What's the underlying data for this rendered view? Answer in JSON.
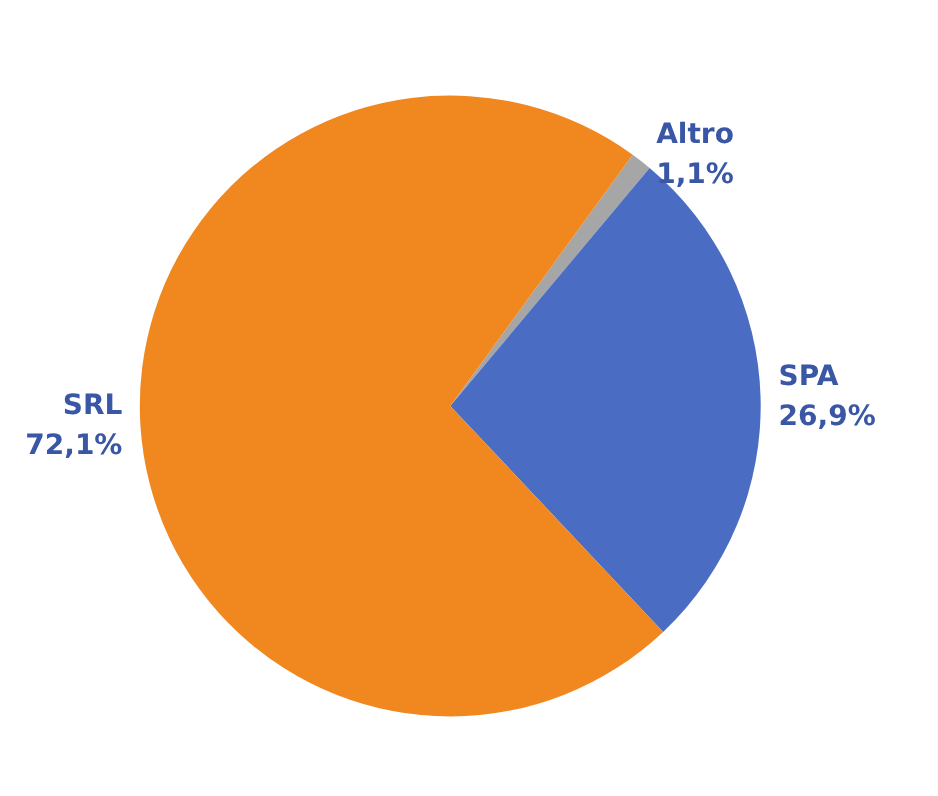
{
  "chart_data": {
    "type": "pie",
    "categories": [
      "Altro",
      "SPA",
      "SRL"
    ],
    "values": [
      1.1,
      26.9,
      72.1
    ],
    "value_labels": [
      "1,1%",
      "26,9%",
      "72,1%"
    ],
    "colors": [
      "#a6a6a6",
      "#4a6cc2",
      "#f0871f"
    ],
    "legend": false
  }
}
